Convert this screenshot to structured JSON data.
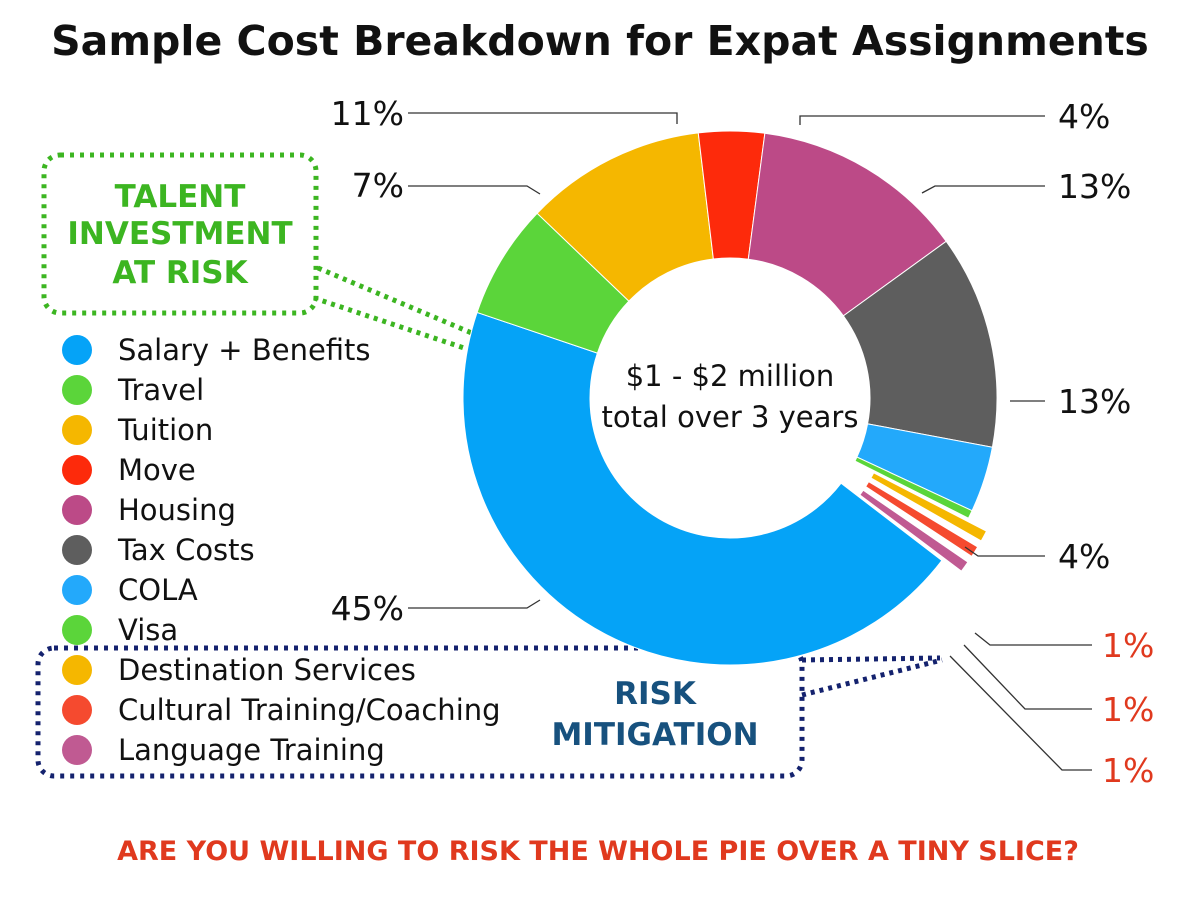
{
  "chart_data": {
    "type": "pie",
    "variant": "donut",
    "title": "Sample Cost Breakdown for Expat Assignments",
    "center_label": [
      "$1 - $2 million",
      "total over 3 years"
    ],
    "slices": [
      {
        "name": "Salary + Benefits",
        "value": 45,
        "label": "45%",
        "color": "#05a3f7"
      },
      {
        "name": "Travel",
        "value": 7,
        "label": "7%",
        "color": "#5bd53a"
      },
      {
        "name": "Tuition",
        "value": 11,
        "label": "11%",
        "color": "#f5b700"
      },
      {
        "name": "Move",
        "value": 4,
        "label": "4%",
        "color": "#fd2a0b"
      },
      {
        "name": "Housing",
        "value": 13,
        "label": "13%",
        "color": "#bc4a87"
      },
      {
        "name": "Tax Costs",
        "value": 13,
        "label": "13%",
        "color": "#5e5e5e"
      },
      {
        "name": "COLA",
        "value": 4,
        "label": "4%",
        "color": "#23a9fb"
      },
      {
        "name": "Visa",
        "value": 0.5,
        "label": "",
        "color": "#5bd53a"
      },
      {
        "name": "Destination Services",
        "value": 1,
        "label": "1%",
        "color": "#f5b700",
        "exploded": true
      },
      {
        "name": "Cultural Training/Coaching",
        "value": 1,
        "label": "1%",
        "color": "#f54a2f",
        "exploded": true
      },
      {
        "name": "Language Training",
        "value": 1,
        "label": "1%",
        "color": "#c05a92",
        "exploded": true
      }
    ],
    "legend": [
      {
        "label": "Salary + Benefits",
        "color": "#05a3f7"
      },
      {
        "label": "Travel",
        "color": "#5bd53a"
      },
      {
        "label": "Tuition",
        "color": "#f5b700"
      },
      {
        "label": "Move",
        "color": "#fd2a0b"
      },
      {
        "label": "Housing",
        "color": "#bc4a87"
      },
      {
        "label": "Tax Costs",
        "color": "#5e5e5e"
      },
      {
        "label": "COLA",
        "color": "#23a9fb"
      },
      {
        "label": "Visa",
        "color": "#5bd53a"
      },
      {
        "label": "Destination Services",
        "color": "#f5b700"
      },
      {
        "label": "Cultural Training/Coaching",
        "color": "#f54a2f"
      },
      {
        "label": "Language Training",
        "color": "#c05a92"
      }
    ],
    "legend_placement": "left",
    "annotations": {
      "talent": [
        "TALENT",
        "INVESTMENT",
        "AT RISK"
      ],
      "risk": [
        "RISK",
        "MITIGATION"
      ],
      "footer": "ARE YOU WILLING TO RISK THE WHOLE PIE OVER A TINY SLICE?"
    }
  },
  "colors": {
    "talent_callout": "#3cb521",
    "risk_callout": "#17517e",
    "risk_border": "#14226e",
    "footer": "#e0391e",
    "small_slice_labels": "#e0391e"
  }
}
